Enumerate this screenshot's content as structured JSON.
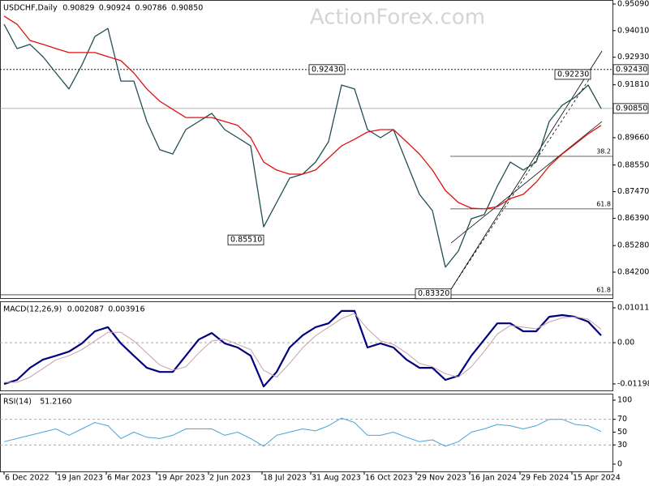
{
  "chart_data": [
    {
      "type": "line",
      "title": "USDCHF,Daily",
      "ohlc": [
        0.90829,
        0.90924,
        0.90786,
        {
          "value": 0.9085,
          "label": "0.90850"
        }
      ],
      "watermark": "ActionForex.com",
      "x": [
        0,
        8,
        16,
        24,
        32,
        40,
        48,
        56,
        64,
        72,
        80,
        88,
        96,
        104,
        112,
        120,
        128,
        136,
        144,
        152,
        160,
        168,
        176,
        184,
        192,
        200,
        208,
        216,
        224,
        232,
        240,
        248,
        256,
        264,
        272,
        280,
        288,
        296,
        304,
        312,
        320,
        328,
        336,
        344,
        352,
        360,
        368
      ],
      "xlim": [
        -2.5,
        375
      ],
      "ylim": [
        0.83147,
        0.95254
      ],
      "yticks": [
        {
          "value": 0.9509,
          "label": "0.95090"
        },
        {
          "value": 0.9401,
          "label": "0.94010"
        },
        {
          "value": 0.9293,
          "label": "0.92930"
        },
        {
          "value": 0.9181,
          "label": "0.91810"
        },
        {
          "value": 0.8966,
          "label": "0.89660"
        },
        {
          "value": 0.8855,
          "label": "0.88550"
        },
        {
          "value": 0.8747,
          "label": "0.87470"
        },
        {
          "value": 0.8639,
          "label": "0.86390"
        },
        {
          "value": 0.8528,
          "label": "0.85280"
        },
        {
          "value": 0.842,
          "label": "0.84200"
        }
      ],
      "series": [
        {
          "name": "USDCHF",
          "color": "#1f4f55",
          "values": [
            0.9427,
            0.9328,
            0.9345,
            0.9295,
            0.9229,
            0.9164,
            0.9262,
            0.9377,
            0.941,
            0.9196,
            0.9196,
            0.9032,
            0.8917,
            0.89,
            0.8999,
            0.9032,
            0.9065,
            0.8999,
            0.8966,
            0.8933,
            0.8604,
            0.8703,
            0.8802,
            0.8818,
            0.8867,
            0.895,
            0.918,
            0.9164,
            0.8999,
            0.8966,
            0.8999,
            0.8867,
            0.8736,
            0.867,
            0.844,
            0.8506,
            0.8637,
            0.8654,
            0.8769,
            0.8867,
            0.8835,
            0.8867,
            0.9032,
            0.9098,
            0.9131,
            0.918,
            0.9085
          ]
        },
        {
          "name": "MA",
          "color": "#e01010",
          "values": [
            0.946,
            0.9427,
            0.9361,
            0.9345,
            0.9328,
            0.9312,
            0.9312,
            0.9312,
            0.9295,
            0.9279,
            0.9229,
            0.9164,
            0.9114,
            0.9081,
            0.9048,
            0.9048,
            0.9048,
            0.9032,
            0.9016,
            0.8966,
            0.8867,
            0.8835,
            0.8818,
            0.8818,
            0.8835,
            0.8884,
            0.8933,
            0.896,
            0.8989,
            0.8999,
            0.8999,
            0.895,
            0.89,
            0.8835,
            0.8752,
            0.8703,
            0.868,
            0.8677,
            0.8686,
            0.8719,
            0.8736,
            0.8785,
            0.8851,
            0.89,
            0.894,
            0.8982,
            0.9016
          ]
        }
      ],
      "hlines": [
        {
          "value": 0.9243,
          "label": "0.92430",
          "dashed": true
        },
        {
          "value": 0.9085,
          "label": "0.90850",
          "dashed": false
        }
      ],
      "annotations": [
        {
          "x": 210,
          "value": 0.9243,
          "label": "0.92430"
        },
        {
          "x": 160,
          "value": 0.8551,
          "label": "0.85510"
        },
        {
          "x": 275.5,
          "value": 0.8332,
          "label": "0.83320"
        },
        {
          "x": 361.5,
          "value": 0.9223,
          "label": "0.92230"
        }
      ],
      "fib_levels": [
        {
          "value": 0.88904,
          "label": "38.2"
        },
        {
          "value": 0.8677,
          "label": "61.8"
        },
        {
          "value": 0.8328,
          "label": "61.8"
        }
      ]
    },
    {
      "type": "line",
      "title": "MACD(12,26,9)",
      "readings": [
        0.002087,
        0.003916
      ],
      "x": [
        0,
        8,
        16,
        24,
        32,
        40,
        48,
        56,
        64,
        72,
        80,
        88,
        96,
        104,
        112,
        120,
        128,
        136,
        144,
        152,
        160,
        168,
        176,
        184,
        192,
        200,
        208,
        216,
        224,
        232,
        240,
        248,
        256,
        264,
        272,
        280,
        288,
        296,
        304,
        312,
        320,
        328,
        336,
        344,
        352,
        360,
        368
      ],
      "xlim": [
        -2.5,
        375
      ],
      "ylim": [
        -0.01386,
        0.012
      ],
      "yticks": [
        0.010117,
        {
          "value": 0,
          "label": "0.00"
        },
        -0.011983
      ],
      "levels": [
        0
      ],
      "series": [
        {
          "name": "MACD",
          "color": "#000080",
          "width": 2.2,
          "values": [
            -0.012,
            -0.0108,
            -0.0073,
            -0.0049,
            -0.0038,
            -0.0026,
            -0.0002,
            0.0033,
            0.0045,
            -0.0002,
            -0.0038,
            -0.0073,
            -0.0085,
            -0.0085,
            -0.0038,
            0.0009,
            0.0028,
            -0.0002,
            -0.0014,
            -0.0038,
            -0.0127,
            -0.0085,
            -0.0014,
            0.0021,
            0.0045,
            0.0056,
            0.0092,
            0.0092,
            -0.0014,
            -0.0002,
            -0.0014,
            -0.0049,
            -0.0073,
            -0.0073,
            -0.0108,
            -0.0096,
            -0.0038,
            0.0009,
            0.0056,
            0.0056,
            0.0033,
            0.0033,
            0.0075,
            0.008,
            0.0075,
            0.0061,
            0.0021
          ]
        },
        {
          "name": "Signal",
          "color": "#c8a0a8",
          "width": 1,
          "values": [
            -0.0115,
            -0.0115,
            -0.01,
            -0.0075,
            -0.005,
            -0.0038,
            -0.002,
            0.0005,
            0.003,
            0.003,
            0.0005,
            -0.003,
            -0.0065,
            -0.008,
            -0.007,
            -0.003,
            0.0005,
            0.001,
            -0.0005,
            -0.002,
            -0.008,
            -0.01,
            -0.006,
            -0.0015,
            0.002,
            0.0045,
            0.007,
            0.0085,
            0.004,
            0.0005,
            -0.0005,
            -0.003,
            -0.006,
            -0.007,
            -0.009,
            -0.01,
            -0.007,
            -0.0025,
            0.0025,
            0.005,
            0.0045,
            0.004,
            0.006,
            0.0072,
            0.0075,
            0.0068,
            0.0039
          ]
        }
      ]
    },
    {
      "type": "line",
      "title": "RSI(14)",
      "readings": [
        {
          "value": 51.216,
          "label": "51.2160"
        }
      ],
      "x": [
        0,
        8,
        16,
        24,
        32,
        40,
        48,
        56,
        64,
        72,
        80,
        88,
        96,
        104,
        112,
        120,
        128,
        136,
        144,
        152,
        160,
        168,
        176,
        184,
        192,
        200,
        208,
        216,
        224,
        232,
        240,
        248,
        256,
        264,
        272,
        280,
        288,
        296,
        304,
        312,
        320,
        328,
        336,
        344,
        352,
        360,
        368
      ],
      "xlim": [
        -2.5,
        375
      ],
      "ylim": [
        -11.4,
        110.1
      ],
      "yticks": [
        100,
        70,
        50,
        30,
        0
      ],
      "levels": [
        70,
        30
      ],
      "xticks": [
        {
          "value": 0,
          "label": "6 Dec 2022"
        },
        {
          "value": 32,
          "label": "19 Jan 2023"
        },
        {
          "value": 63,
          "label": "6 Mar 2023"
        },
        {
          "value": 94,
          "label": "19 Apr 2023"
        },
        {
          "value": 126,
          "label": "2 Jun 2023"
        },
        {
          "value": 159,
          "label": "18 Jul 2023"
        },
        {
          "value": 189,
          "label": "31 Aug 2023"
        },
        {
          "value": 222,
          "label": "16 Oct 2023"
        },
        {
          "value": 254,
          "label": "29 Nov 2023"
        },
        {
          "value": 287,
          "label": "16 Jan 2024"
        },
        {
          "value": 318,
          "label": "29 Feb 2024"
        },
        {
          "value": 350,
          "label": "15 Apr 2024"
        }
      ],
      "series": [
        {
          "name": "RSI",
          "color": "#4da3d8",
          "width": 1,
          "values": [
            35,
            40,
            45,
            50,
            55,
            45,
            55,
            65,
            60,
            40,
            50,
            42,
            40,
            45,
            55,
            55,
            55,
            45,
            50,
            40,
            28,
            45,
            50,
            55,
            52,
            60,
            72,
            65,
            45,
            45,
            50,
            42,
            35,
            38,
            28,
            35,
            50,
            55,
            62,
            60,
            55,
            60,
            70,
            70,
            62,
            60,
            51
          ]
        }
      ]
    }
  ]
}
